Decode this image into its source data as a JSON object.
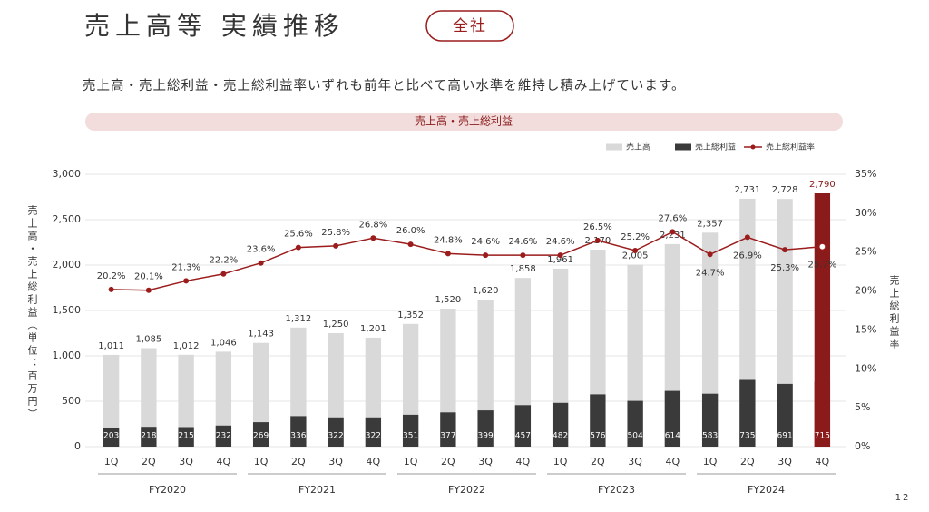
{
  "header": {
    "title": "売上高等 実績推移",
    "badge": "全社",
    "subtitle": "売上高・売上総利益・売上総利益率いずれも前年と比べて高い水準を維持し積み上げています。"
  },
  "page_number": "12",
  "chart_data": {
    "type": "bar_line",
    "title": "売上高・売上総利益",
    "y_label": "売上高・売上総利益（単位：百万円）",
    "y2_label": "売上総利益率",
    "categories": [
      "1Q",
      "2Q",
      "3Q",
      "4Q",
      "1Q",
      "2Q",
      "3Q",
      "4Q",
      "1Q",
      "2Q",
      "3Q",
      "4Q",
      "1Q",
      "2Q",
      "3Q",
      "4Q",
      "1Q",
      "2Q",
      "3Q",
      "4Q"
    ],
    "groups": [
      "FY2020",
      "FY2021",
      "FY2022",
      "FY2023",
      "FY2024"
    ],
    "series": [
      {
        "name": "売上高",
        "type": "bar",
        "color": "#d9d9d9",
        "colors": [
          "#d9d9d9",
          "#d9d9d9",
          "#d9d9d9",
          "#d9d9d9",
          "#d9d9d9",
          "#d9d9d9",
          "#d9d9d9",
          "#d9d9d9",
          "#d9d9d9",
          "#d9d9d9",
          "#d9d9d9",
          "#d9d9d9",
          "#d9d9d9",
          "#d9d9d9",
          "#d9d9d9",
          "#d9d9d9",
          "#d9d9d9",
          "#d9d9d9",
          "#d9d9d9",
          "#8b1a1a"
        ],
        "values": [
          1011,
          1085,
          1012,
          1046,
          1143,
          1312,
          1250,
          1201,
          1352,
          1520,
          1620,
          1858,
          1961,
          2170,
          2005,
          2231,
          2357,
          2731,
          2728,
          2790
        ],
        "value_labels": [
          "1,011",
          "1,085",
          "1,012",
          "1,046",
          "1,143",
          "1,312",
          "1,250",
          "1,201",
          "1,352",
          "1,520",
          "1,620",
          "1,858",
          "1,961",
          "2,170",
          "2,005",
          "2,231",
          "2,357",
          "2,731",
          "2,728",
          "2,790"
        ]
      },
      {
        "name": "売上総利益",
        "type": "bar",
        "color": "#3a3a3a",
        "colors": [
          "#3a3a3a",
          "#3a3a3a",
          "#3a3a3a",
          "#3a3a3a",
          "#3a3a3a",
          "#3a3a3a",
          "#3a3a3a",
          "#3a3a3a",
          "#3a3a3a",
          "#3a3a3a",
          "#3a3a3a",
          "#3a3a3a",
          "#3a3a3a",
          "#3a3a3a",
          "#3a3a3a",
          "#3a3a3a",
          "#3a3a3a",
          "#3a3a3a",
          "#3a3a3a",
          "#8b1a1a"
        ],
        "values": [
          203,
          218,
          215,
          232,
          269,
          336,
          322,
          322,
          351,
          377,
          399,
          457,
          482,
          576,
          504,
          614,
          583,
          735,
          691,
          715
        ]
      },
      {
        "name": "売上総利益率",
        "type": "line",
        "axis": "y2",
        "color": "#9b1c1c",
        "values": [
          20.2,
          20.1,
          21.3,
          22.2,
          23.6,
          25.6,
          25.8,
          26.8,
          26.0,
          24.8,
          24.6,
          24.6,
          24.6,
          26.5,
          25.2,
          27.6,
          24.7,
          26.9,
          25.3,
          25.7
        ],
        "value_labels": [
          "20.2%",
          "20.1%",
          "21.3%",
          "22.2%",
          "23.6%",
          "25.6%",
          "25.8%",
          "26.8%",
          "26.0%",
          "24.8%",
          "24.6%",
          "24.6%",
          "24.6%",
          "26.5%",
          "25.2%",
          "27.6%",
          "24.7%",
          "26.9%",
          "25.3%",
          "25.7%"
        ]
      }
    ],
    "ylim": [
      0,
      3000
    ],
    "yticks": [
      0,
      500,
      {
        "value": 1000,
        "label": "1,000"
      },
      {
        "value": 1500,
        "label": "1,500"
      },
      {
        "value": 2000,
        "label": "2,000"
      },
      {
        "value": 2500,
        "label": "2,500"
      },
      {
        "value": 3000,
        "label": "3,000"
      }
    ],
    "y2lim": [
      0,
      35
    ],
    "y2ticks": [
      {
        "value": 0,
        "label": "0%"
      },
      {
        "value": 5,
        "label": "5%"
      },
      {
        "value": 10,
        "label": "10%"
      },
      {
        "value": 15,
        "label": "15%"
      },
      {
        "value": 20,
        "label": "20%"
      },
      {
        "value": 25,
        "label": "25%"
      },
      {
        "value": 30,
        "label": "30%"
      },
      {
        "value": 35,
        "label": "35%"
      }
    ],
    "grid": true,
    "legend": "top-right"
  }
}
